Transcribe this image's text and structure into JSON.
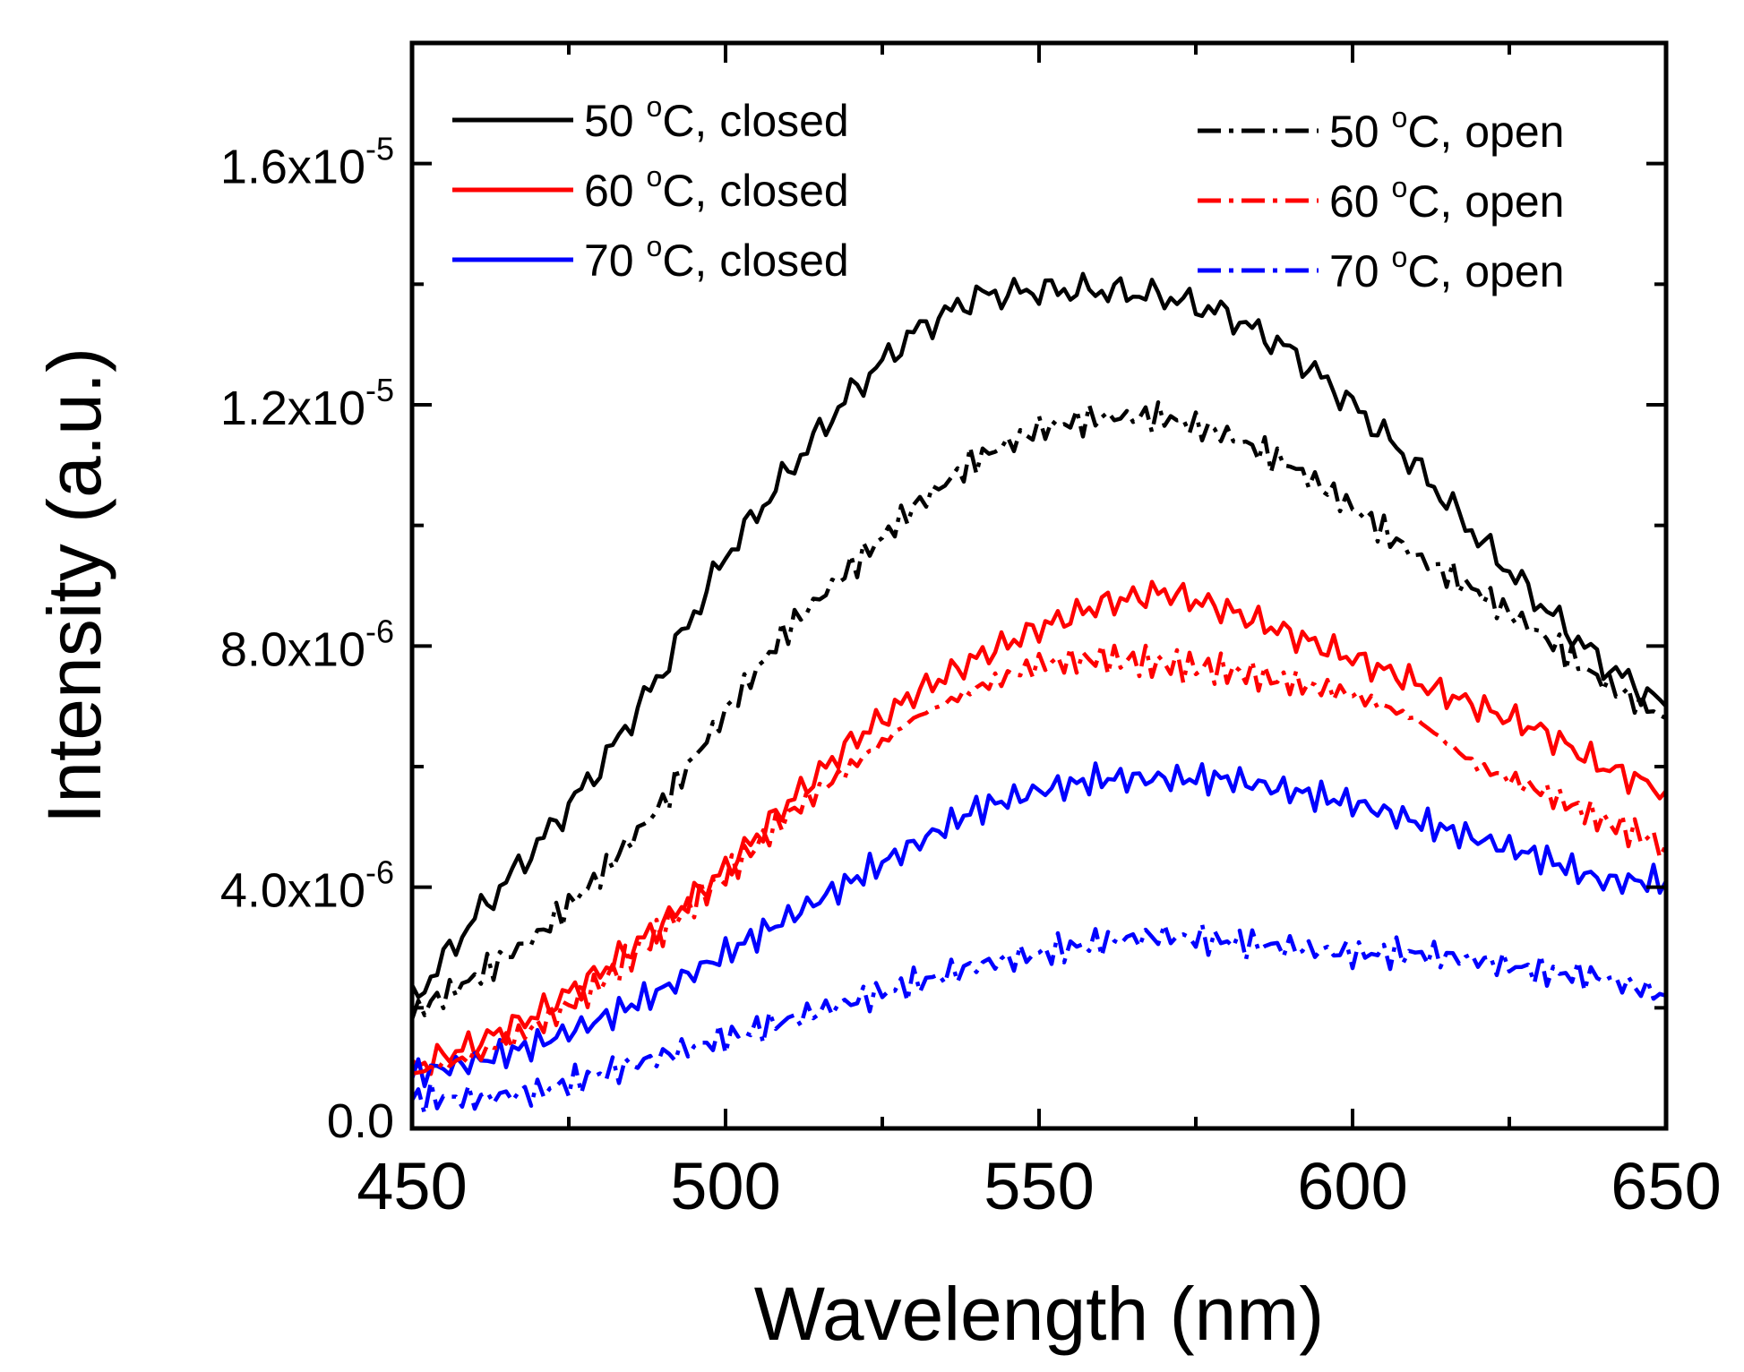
{
  "chart_data": {
    "type": "line",
    "title": "",
    "xlabel": "Wavelength (nm)",
    "ylabel": "Intensity (a.u.)",
    "xlim": [
      450,
      650
    ],
    "ylim": [
      0,
      1.8e-05
    ],
    "grid": false,
    "legend_position": "top",
    "x_ticks": [
      {
        "value": 450,
        "label": "450"
      },
      {
        "value": 500,
        "label": "500"
      },
      {
        "value": 550,
        "label": "550"
      },
      {
        "value": 600,
        "label": "600"
      },
      {
        "value": 650,
        "label": "650"
      }
    ],
    "y_ticks": [
      {
        "value": 0,
        "label": "0.0",
        "base": "0.0",
        "exp": ""
      },
      {
        "value": 4e-06,
        "label": "4.0x10-6",
        "base": "4.0x10",
        "exp": "-6"
      },
      {
        "value": 8e-06,
        "label": "8.0x10-6",
        "base": "8.0x10",
        "exp": "-6"
      },
      {
        "value": 1.2e-05,
        "label": "1.2x10-5",
        "base": "1.2x10",
        "exp": "-5"
      },
      {
        "value": 1.6e-05,
        "label": "1.6x10-5",
        "base": "1.6x10",
        "exp": "-5"
      }
    ],
    "x": [
      450,
      460,
      470,
      480,
      490,
      500,
      510,
      520,
      530,
      540,
      550,
      560,
      570,
      580,
      590,
      600,
      610,
      620,
      630,
      640,
      650
    ],
    "series": [
      {
        "name": "50 °C, closed",
        "label_text": "50 ",
        "label_unit": "C, closed",
        "color": "#000000",
        "style": "solid",
        "values": [
          2.1e-06,
          3.5e-06,
          4.7e-06,
          6e-06,
          7.6e-06,
          9.5e-06,
          1.09e-05,
          1.22e-05,
          1.32e-05,
          1.38e-05,
          1.39e-05,
          1.39e-05,
          1.38e-05,
          1.35e-05,
          1.29e-05,
          1.2e-05,
          1.1e-05,
          9.8e-06,
          8.7e-06,
          7.7e-06,
          7e-06
        ]
      },
      {
        "name": "60 °C, closed",
        "label_text": "60 ",
        "label_unit": "C, closed",
        "color": "#ff0000",
        "style": "solid",
        "values": [
          1e-06,
          1.4e-06,
          1.9e-06,
          2.6e-06,
          3.4e-06,
          4.3e-06,
          5.4e-06,
          6.4e-06,
          7.2e-06,
          7.8e-06,
          8.3e-06,
          8.7e-06,
          8.9e-06,
          8.6e-06,
          8.2e-06,
          7.8e-06,
          7.4e-06,
          7e-06,
          6.6e-06,
          6e-06,
          5.6e-06
        ]
      },
      {
        "name": "70 °C, closed",
        "label_text": "70 ",
        "label_unit": "C, closed",
        "color": "#0000ff",
        "style": "solid",
        "values": [
          9e-07,
          1.1e-06,
          1.4e-06,
          1.8e-06,
          2.3e-06,
          2.9e-06,
          3.5e-06,
          4.1e-06,
          4.7e-06,
          5.3e-06,
          5.6e-06,
          5.8e-06,
          5.8e-06,
          5.8e-06,
          5.6e-06,
          5.4e-06,
          5.1e-06,
          4.8e-06,
          4.5e-06,
          4.1e-06,
          4.1e-06
        ]
      },
      {
        "name": "50 °C, open",
        "label_text": "50 ",
        "label_unit": "C, open",
        "color": "#000000",
        "style": "dashdot",
        "values": [
          1.9e-06,
          2.5e-06,
          3.2e-06,
          4.2e-06,
          5.4e-06,
          6.9e-06,
          8.3e-06,
          9.3e-06,
          1.03e-05,
          1.11e-05,
          1.16e-05,
          1.18e-05,
          1.18e-05,
          1.15e-05,
          1.1e-05,
          1.03e-05,
          9.5e-06,
          8.9e-06,
          8.2e-06,
          7.4e-06,
          6.8e-06
        ]
      },
      {
        "name": "60 °C, open",
        "label_text": "60 ",
        "label_unit": "C, open",
        "color": "#ff0000",
        "style": "dashdot",
        "values": [
          9e-07,
          1.2e-06,
          1.7e-06,
          2.4e-06,
          3.3e-06,
          4.2e-06,
          5.2e-06,
          6e-06,
          6.8e-06,
          7.3e-06,
          7.7e-06,
          7.8e-06,
          7.7e-06,
          7.6e-06,
          7.4e-06,
          7.2e-06,
          6.8e-06,
          6e-06,
          5.6e-06,
          5.1e-06,
          4.7e-06
        ]
      },
      {
        "name": "70 °C, open",
        "label_text": "70 ",
        "label_unit": "C, open",
        "color": "#0000ff",
        "style": "dashdot",
        "values": [
          5e-07,
          5e-07,
          6e-07,
          9e-07,
          1.2e-06,
          1.5e-06,
          1.8e-06,
          2.1e-06,
          2.4e-06,
          2.7e-06,
          2.9e-06,
          3.1e-06,
          3.2e-06,
          3.1e-06,
          3e-06,
          2.9e-06,
          2.9e-06,
          2.8e-06,
          2.6e-06,
          2.5e-06,
          2.2e-06
        ]
      }
    ]
  }
}
